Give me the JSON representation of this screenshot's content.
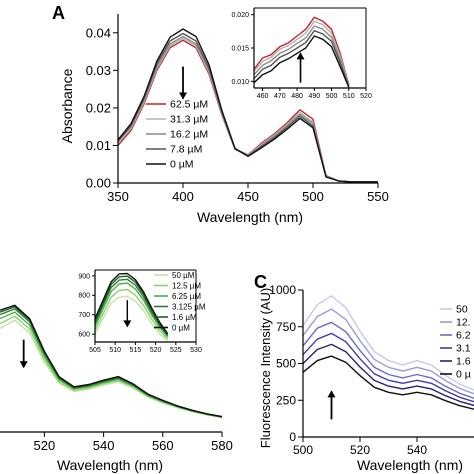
{
  "chart_data": [
    {
      "panel": "A",
      "type": "line",
      "xlabel": "Wavelength (nm)",
      "ylabel": "Absorbance",
      "xlim": [
        350,
        550
      ],
      "ylim": [
        0,
        0.045
      ],
      "xticks": [
        "350",
        "400",
        "450",
        "500",
        "550"
      ],
      "yticks": [
        "0.00",
        "0.01",
        "0.02",
        "0.03",
        "0.04"
      ],
      "legend_position": "bottom-left",
      "arrow_direction": "down",
      "x": [
        350,
        360,
        370,
        380,
        390,
        400,
        410,
        420,
        430,
        440,
        450,
        460,
        470,
        480,
        490,
        500,
        510,
        520,
        530,
        540,
        550
      ],
      "series": [
        {
          "name": "62.5 µM",
          "color": "#c0282d",
          "values": [
            0.01,
            0.014,
            0.021,
            0.03,
            0.036,
            0.038,
            0.036,
            0.029,
            0.018,
            0.009,
            0.0075,
            0.0105,
            0.013,
            0.016,
            0.0195,
            0.017,
            0.002,
            0.0005,
            0.0003,
            0.0003,
            0.0003
          ]
        },
        {
          "name": "31.3 µM",
          "color": "#b3b3b3",
          "values": [
            0.0105,
            0.0145,
            0.0215,
            0.0305,
            0.0365,
            0.0385,
            0.0365,
            0.0295,
            0.0182,
            0.009,
            0.0074,
            0.0102,
            0.0127,
            0.0156,
            0.0188,
            0.0162,
            0.0019,
            0.0005,
            0.0003,
            0.0003,
            0.0003
          ]
        },
        {
          "name": "16.2 µM",
          "color": "#8c8c8c",
          "values": [
            0.011,
            0.015,
            0.022,
            0.031,
            0.037,
            0.039,
            0.037,
            0.03,
            0.0185,
            0.009,
            0.0073,
            0.0099,
            0.0124,
            0.0152,
            0.0183,
            0.0158,
            0.0018,
            0.0005,
            0.0003,
            0.0003,
            0.0003
          ]
        },
        {
          "name": "7.8 µM",
          "color": "#555555",
          "values": [
            0.0112,
            0.0153,
            0.0225,
            0.0318,
            0.0378,
            0.0398,
            0.0378,
            0.0306,
            0.0188,
            0.0091,
            0.0072,
            0.0096,
            0.012,
            0.0148,
            0.0178,
            0.0152,
            0.0017,
            0.0005,
            0.0003,
            0.0003,
            0.0003
          ]
        },
        {
          "name": "0 µM",
          "color": "#111111",
          "values": [
            0.0115,
            0.0158,
            0.023,
            0.0325,
            0.0388,
            0.041,
            0.039,
            0.0315,
            0.0192,
            0.0092,
            0.0071,
            0.0093,
            0.0116,
            0.0143,
            0.0172,
            0.0147,
            0.0016,
            0.0005,
            0.0003,
            0.0003,
            0.0003
          ]
        }
      ],
      "inset": {
        "xlim": [
          455,
          520
        ],
        "ylim": [
          0.009,
          0.021
        ],
        "xticks": [
          "460",
          "470",
          "480",
          "490",
          "500",
          "510",
          "520"
        ],
        "yticks": [
          "0.010",
          "0.015",
          "0.020"
        ],
        "arrow_direction": "up",
        "x": [
          455,
          460,
          465,
          470,
          475,
          480,
          485,
          490,
          495,
          500,
          505,
          510
        ],
        "series": [
          {
            "color": "#c0282d",
            "values": [
              0.0118,
              0.0135,
              0.014,
              0.0152,
              0.0158,
              0.0168,
              0.0178,
              0.0196,
              0.019,
              0.0178,
              0.0142,
              0.0095
            ]
          },
          {
            "color": "#b3b3b3",
            "values": [
              0.0115,
              0.013,
              0.0136,
              0.0148,
              0.0154,
              0.0163,
              0.0172,
              0.019,
              0.0185,
              0.0172,
              0.0138,
              0.0094
            ]
          },
          {
            "color": "#8c8c8c",
            "values": [
              0.011,
              0.0124,
              0.0131,
              0.0142,
              0.0148,
              0.0157,
              0.0165,
              0.0183,
              0.0178,
              0.0166,
              0.0133,
              0.0093
            ]
          },
          {
            "color": "#555555",
            "values": [
              0.0104,
              0.0118,
              0.0124,
              0.0136,
              0.0142,
              0.015,
              0.0158,
              0.0176,
              0.0171,
              0.016,
              0.0128,
              0.0092
            ]
          },
          {
            "color": "#111111",
            "values": [
              0.0098,
              0.011,
              0.0116,
              0.0128,
              0.0134,
              0.0142,
              0.015,
              0.0168,
              0.0163,
              0.0152,
              0.0122,
              0.0091
            ]
          }
        ]
      }
    },
    {
      "panel": "",
      "type": "line",
      "xlabel": "Wavelength (nm)",
      "ylabel": "",
      "xlim": [
        505,
        580
      ],
      "ylim": [
        0,
        1000
      ],
      "xticks": [
        "520",
        "540",
        "560",
        "580"
      ],
      "legend_position": "top-right (inside inset)",
      "arrow_direction": "down",
      "x": [
        505,
        510,
        515,
        520,
        525,
        530,
        535,
        540,
        545,
        550,
        555,
        560,
        565,
        570,
        575,
        580
      ],
      "series": [
        {
          "name": "50 µM",
          "color": "#c5e3a8",
          "values": [
            640,
            690,
            610,
            430,
            300,
            250,
            265,
            290,
            310,
            270,
            215,
            180,
            150,
            125,
            105,
            90
          ]
        },
        {
          "name": "12.5 µM",
          "color": "#8fd070",
          "values": [
            670,
            715,
            635,
            448,
            310,
            258,
            272,
            298,
            318,
            278,
            220,
            184,
            153,
            127,
            107,
            91
          ]
        },
        {
          "name": "6.25 µM",
          "color": "#4caf50",
          "values": [
            700,
            740,
            660,
            468,
            322,
            266,
            280,
            306,
            326,
            285,
            225,
            188,
            156,
            130,
            109,
            92
          ]
        },
        {
          "name": "3.125 µM",
          "color": "#2e7d32",
          "values": [
            725,
            760,
            680,
            483,
            331,
            272,
            286,
            312,
            333,
            290,
            229,
            191,
            158,
            132,
            110,
            93
          ]
        },
        {
          "name": "1.6 µM",
          "color": "#1b5e20",
          "values": [
            740,
            772,
            692,
            492,
            337,
            276,
            290,
            317,
            338,
            294,
            232,
            193,
            160,
            133,
            111,
            94
          ]
        },
        {
          "name": "0 µM",
          "color": "#111111",
          "values": [
            752,
            782,
            700,
            498,
            341,
            279,
            293,
            320,
            342,
            297,
            234,
            195,
            161,
            134,
            112,
            95
          ]
        }
      ],
      "inset": {
        "xlim": [
          505,
          530
        ],
        "ylim": [
          560,
          930
        ],
        "xticks": [
          "505",
          "510",
          "515",
          "520",
          "525",
          "530"
        ],
        "yticks": [
          "600",
          "700",
          "800",
          "900"
        ],
        "arrow_direction": "down",
        "x": [
          505,
          507,
          509,
          511,
          513,
          515,
          517,
          519,
          521,
          523
        ],
        "series": [
          {
            "color": "#c5e3a8",
            "values": [
              600,
              680,
              760,
              790,
              795,
              770,
              720,
              655,
              600,
              565
            ]
          },
          {
            "color": "#8fd070",
            "values": [
              620,
              705,
              790,
              825,
              830,
              800,
              748,
              678,
              618,
              575
            ]
          },
          {
            "color": "#4caf50",
            "values": [
              640,
              730,
              820,
              858,
              862,
              832,
              775,
              700,
              635,
              585
            ]
          },
          {
            "color": "#2e7d32",
            "values": [
              655,
              748,
              840,
              878,
              882,
              852,
              792,
              714,
              646,
              592
            ]
          },
          {
            "color": "#1b5e20",
            "values": [
              668,
              762,
              856,
              895,
              898,
              868,
              806,
              726,
              655,
              598
            ]
          },
          {
            "color": "#111111",
            "values": [
              680,
              775,
              870,
              910,
              912,
              880,
              818,
              736,
              662,
              603
            ]
          }
        ]
      }
    },
    {
      "panel": "C",
      "type": "line",
      "xlabel": "Wavelength (nm)",
      "ylabel": "Fluorescence Intensity (AU)",
      "xlim": [
        500,
        560
      ],
      "ylim": [
        0,
        1000
      ],
      "xticks": [
        "500",
        "520",
        "540"
      ],
      "yticks": [
        "0",
        "250",
        "500",
        "750",
        "1000"
      ],
      "legend_position": "right",
      "arrow_direction": "up",
      "x": [
        500,
        505,
        510,
        515,
        520,
        525,
        530,
        535,
        540,
        545,
        550,
        555,
        560
      ],
      "series": [
        {
          "name": "50",
          "color": "#c8c8ee",
          "values": [
            760,
            900,
            960,
            880,
            720,
            580,
            520,
            490,
            520,
            490,
            420,
            360,
            320
          ]
        },
        {
          "name": "12.",
          "color": "#9a9ade",
          "values": [
            690,
            820,
            870,
            800,
            655,
            528,
            474,
            448,
            474,
            448,
            384,
            330,
            294
          ]
        },
        {
          "name": "6.2",
          "color": "#6b6bc8",
          "values": [
            620,
            740,
            780,
            716,
            588,
            474,
            425,
            402,
            425,
            402,
            345,
            297,
            264
          ]
        },
        {
          "name": "3.1",
          "color": "#3c3ca8",
          "values": [
            560,
            665,
            705,
            648,
            532,
            430,
            386,
            365,
            386,
            365,
            314,
            270,
            240
          ]
        },
        {
          "name": "1.6",
          "color": "#22227a",
          "values": [
            500,
            595,
            630,
            580,
            476,
            385,
            346,
            327,
            346,
            327,
            281,
            242,
            215
          ]
        },
        {
          "name": "0 µ",
          "color": "#111111",
          "values": [
            440,
            520,
            550,
            508,
            418,
            338,
            304,
            287,
            304,
            287,
            247,
            213,
            189
          ]
        }
      ]
    }
  ],
  "labels": {
    "panel_a": "A",
    "panel_c": "C",
    "a_xlabel": "Wavelength (nm)",
    "a_ylabel": "Absorbance",
    "b_xlabel": "Wavelength (nm)",
    "c_xlabel": "Wavelength (nm)",
    "c_ylabel": "Fluorescence Intensity (AU)"
  },
  "colors": {
    "axis": "#000000",
    "background": "#ffffff"
  }
}
